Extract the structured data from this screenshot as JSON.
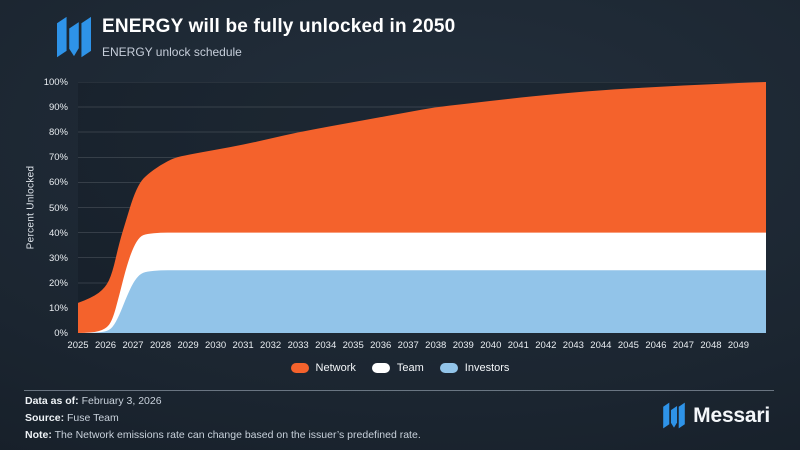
{
  "header": {
    "title": "ENERGY will be fully unlocked in 2050",
    "subtitle": "ENERGY unlock schedule"
  },
  "colors": {
    "network_orange": "#f4622c",
    "team_white": "#ffffff",
    "investors_blue": "#92c4e9",
    "logo_blue": "#2e93e8",
    "background": "#1b2530"
  },
  "chart_data": {
    "type": "area",
    "stacked": true,
    "title": "ENERGY unlock schedule",
    "xlabel": "",
    "ylabel": "Percent Unlocked",
    "xlim": [
      2025,
      2050
    ],
    "ylim": [
      0,
      100
    ],
    "grid": true,
    "legend_position": "bottom",
    "y_ticks": [
      0,
      10,
      20,
      30,
      40,
      50,
      60,
      70,
      80,
      90,
      100
    ],
    "y_tick_suffix": "%",
    "x_tick_labels": [
      "2025",
      "2026",
      "2027",
      "2028",
      "2029",
      "2030",
      "2031",
      "2032",
      "2033",
      "2034",
      "2035",
      "2036",
      "2037",
      "2038",
      "2039",
      "2040",
      "2041",
      "2042",
      "2043",
      "2044",
      "2045",
      "2046",
      "2047",
      "2048",
      "2049"
    ],
    "x": [
      2025,
      2025.5,
      2026,
      2026.25,
      2026.5,
      2026.75,
      2027,
      2027.25,
      2027.5,
      2028,
      2028.5,
      2029,
      2030,
      2031,
      2032,
      2033,
      2034,
      2035,
      2036,
      2037,
      2038,
      2039,
      2040,
      2041,
      2042,
      2043,
      2044,
      2045,
      2046,
      2047,
      2048,
      2049,
      2050
    ],
    "stack_order": [
      "Investors",
      "Team",
      "Network"
    ],
    "series": [
      {
        "name": "Network",
        "color": "#f4622c",
        "values": [
          12,
          14,
          16.5,
          19,
          21,
          19,
          20,
          21.5,
          23.5,
          27,
          29.8,
          31,
          33,
          35,
          37.5,
          40,
          42,
          44,
          46,
          48,
          50,
          51.2,
          52.5,
          53.7,
          54.8,
          55.8,
          56.7,
          57.4,
          58,
          58.6,
          59.1,
          59.6,
          60
        ]
      },
      {
        "name": "Team",
        "color": "#ffffff",
        "values": [
          0,
          0,
          1,
          3,
          8,
          12,
          14,
          15,
          15,
          15,
          15,
          15,
          15,
          15,
          15,
          15,
          15,
          15,
          15,
          15,
          15,
          15,
          15,
          15,
          15,
          15,
          15,
          15,
          15,
          15,
          15,
          15,
          15
        ]
      },
      {
        "name": "Investors",
        "color": "#92c4e9",
        "values": [
          0,
          0,
          0.5,
          2,
          7,
          14,
          20,
          23.5,
          24.5,
          25,
          25,
          25,
          25,
          25,
          25,
          25,
          25,
          25,
          25,
          25,
          25,
          25,
          25,
          25,
          25,
          25,
          25,
          25,
          25,
          25,
          25,
          25,
          25
        ]
      }
    ]
  },
  "footer": {
    "data_as_of_label": "Data as of:",
    "data_as_of": "February 3, 2026",
    "source_label": "Source:",
    "source": "Fuse Team",
    "note_label": "Note:",
    "note": "The Network emissions rate can change based on the issuer’s predefined rate."
  },
  "brand": {
    "name": "Messari"
  }
}
